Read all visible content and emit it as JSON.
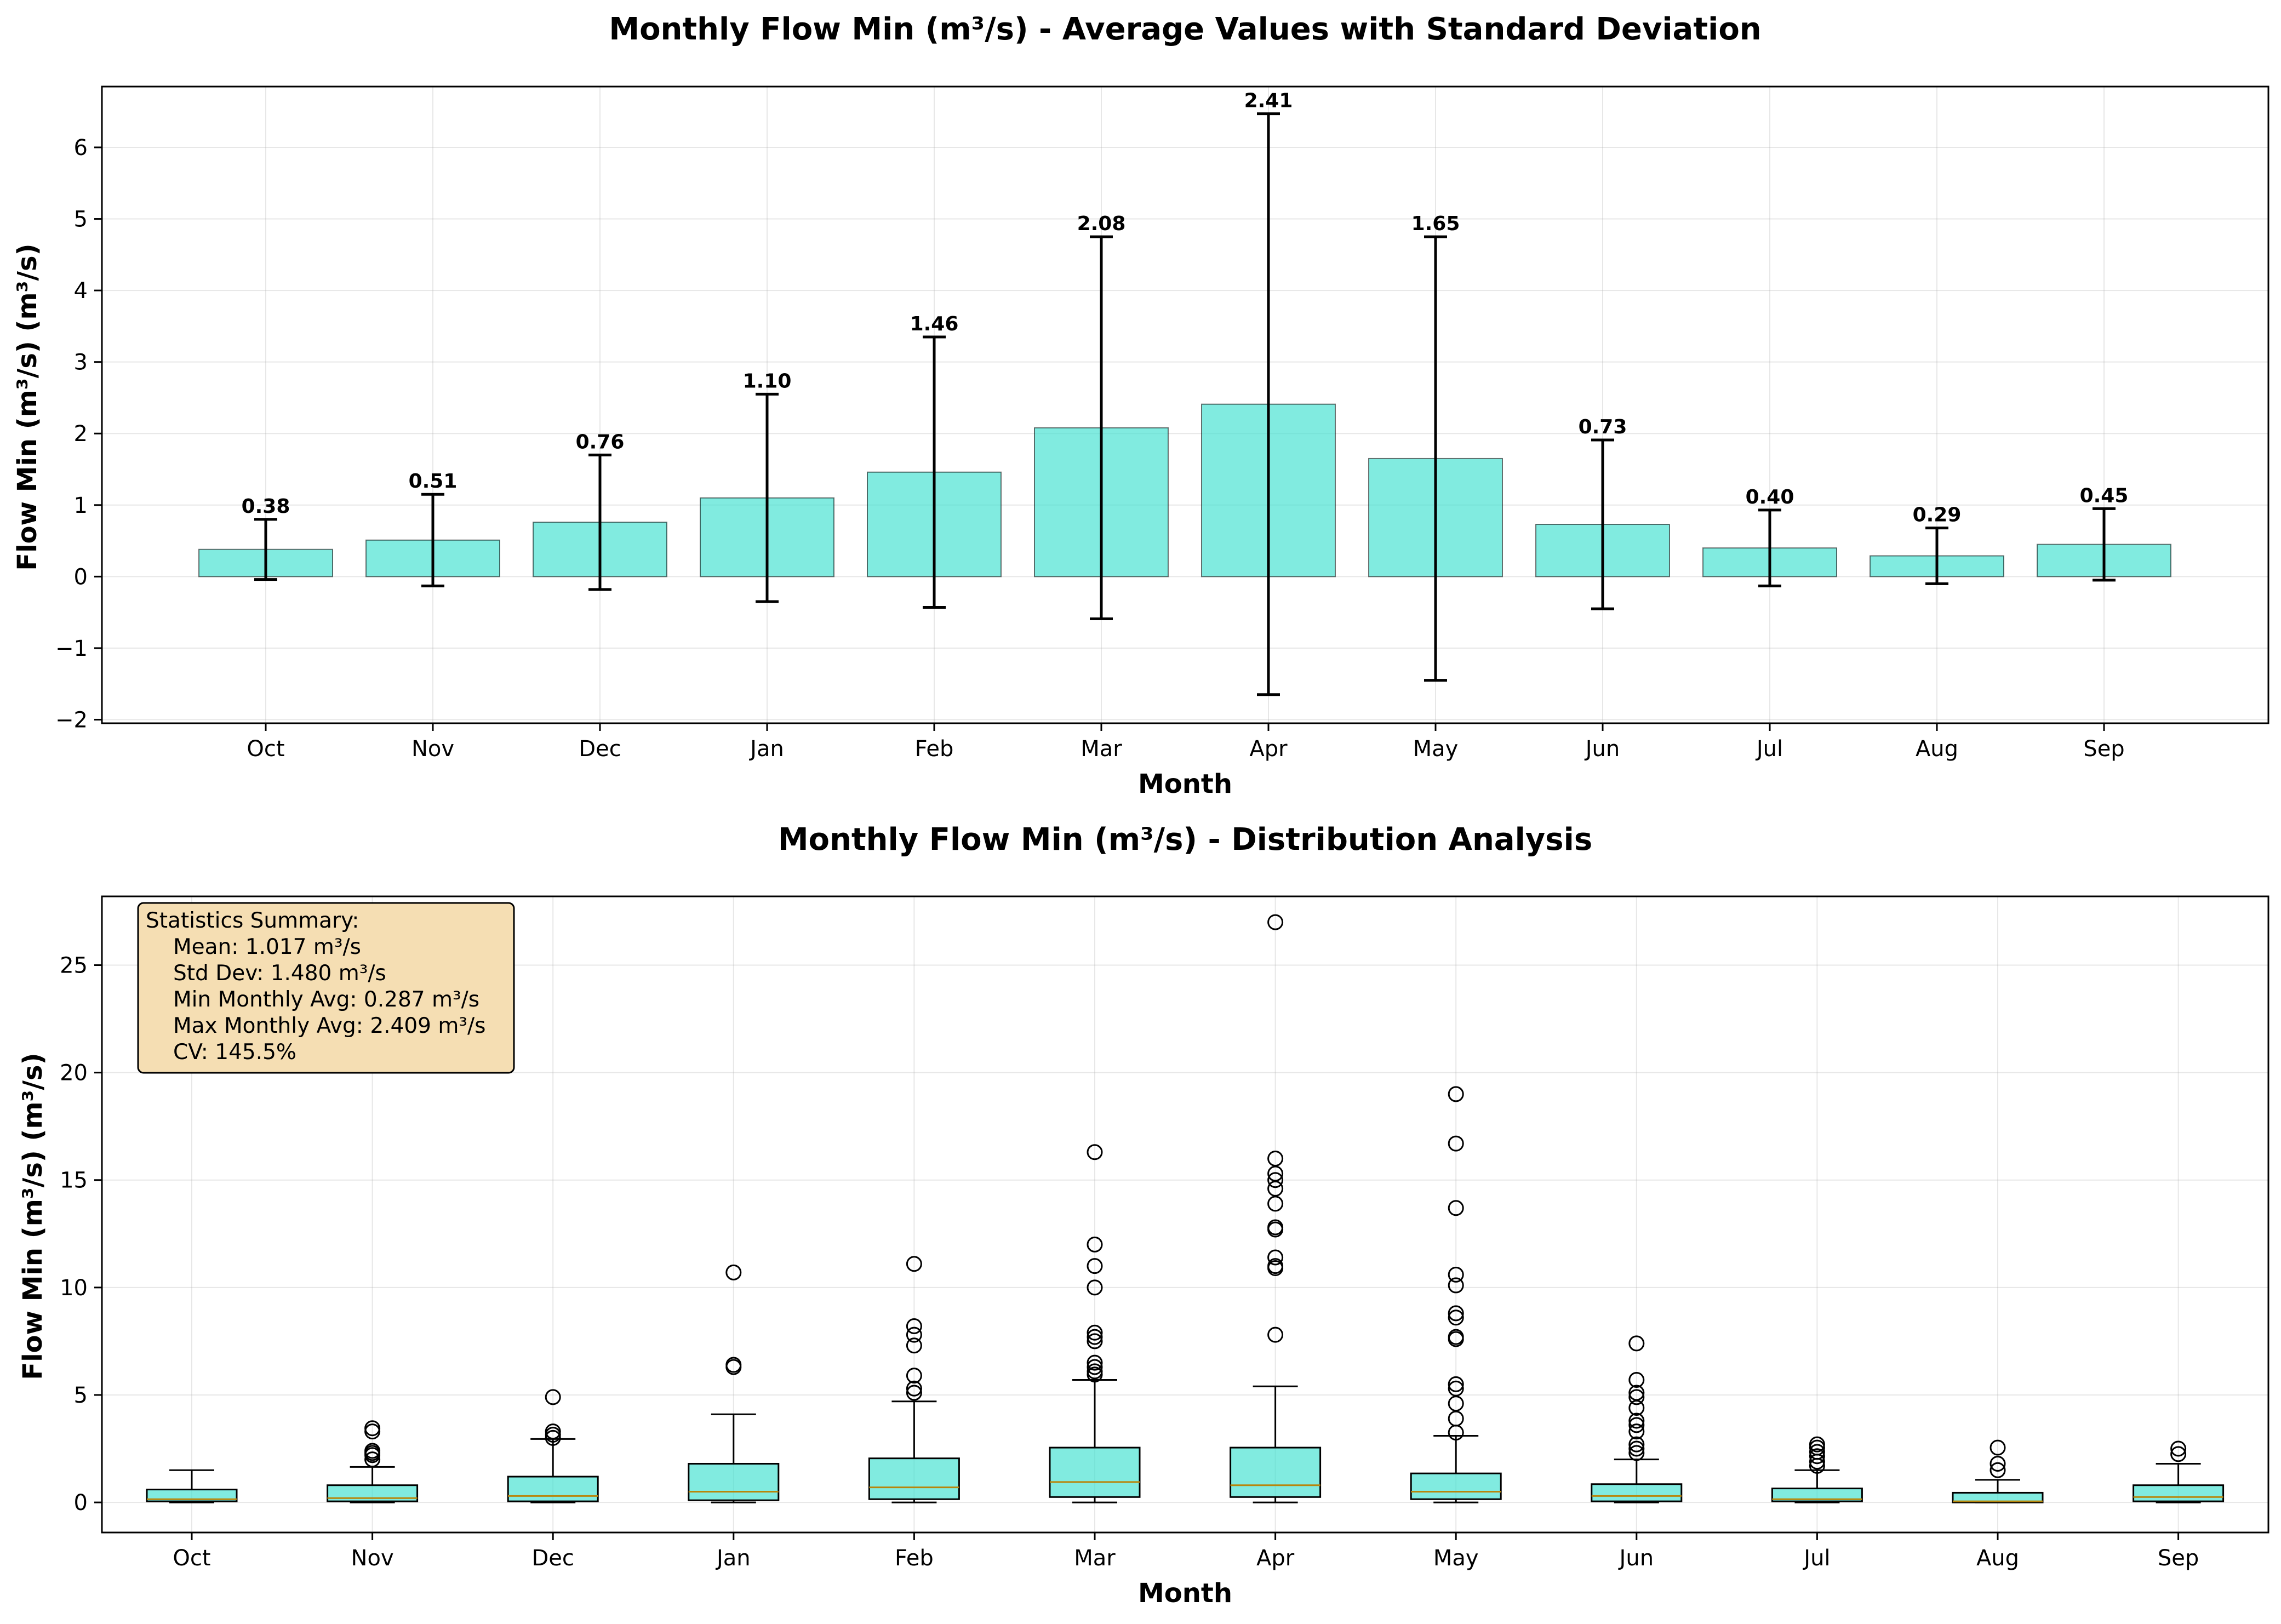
{
  "colors": {
    "bar_fill": "#40E0D0",
    "box_fill": "#40E0D0",
    "median": "#b8860b",
    "stats_box": "#f5deb3"
  },
  "chart_data": [
    {
      "type": "bar",
      "title": "Monthly Flow Min (m³/s) - Average Values with Standard Deviation",
      "xlabel": "Month",
      "ylabel": "Flow Min (m³/s) (m³/s)",
      "categories": [
        "Oct",
        "Nov",
        "Dec",
        "Jan",
        "Feb",
        "Mar",
        "Apr",
        "May",
        "Jun",
        "Jul",
        "Aug",
        "Sep"
      ],
      "values": [
        0.38,
        0.51,
        0.76,
        1.1,
        1.46,
        2.08,
        2.41,
        1.65,
        0.73,
        0.4,
        0.29,
        0.45
      ],
      "value_labels": [
        "0.38",
        "0.51",
        "0.76",
        "1.10",
        "1.46",
        "2.08",
        "2.41",
        "1.65",
        "0.73",
        "0.40",
        "0.29",
        "0.45"
      ],
      "std": [
        0.42,
        0.64,
        0.94,
        1.45,
        1.89,
        2.67,
        4.06,
        3.1,
        1.18,
        0.53,
        0.39,
        0.5
      ],
      "ylim": [
        -2.05,
        6.85
      ],
      "yticks": [
        -2,
        -1,
        0,
        1,
        2,
        3,
        4,
        5,
        6
      ],
      "ytick_labels": [
        "−2",
        "−1",
        "0",
        "1",
        "2",
        "3",
        "4",
        "5",
        "6"
      ],
      "grid": true
    },
    {
      "type": "box",
      "title": "Monthly Flow Min (m³/s) - Distribution Analysis",
      "xlabel": "Month",
      "ylabel": "Flow Min (m³/s) (m³/s)",
      "categories": [
        "Oct",
        "Nov",
        "Dec",
        "Jan",
        "Feb",
        "Mar",
        "Apr",
        "May",
        "Jun",
        "Jul",
        "Aug",
        "Sep"
      ],
      "ylim": [
        -1.4,
        28.2
      ],
      "yticks": [
        0,
        5,
        10,
        15,
        20,
        25
      ],
      "ytick_labels": [
        "0",
        "5",
        "10",
        "15",
        "20",
        "25"
      ],
      "grid": true,
      "boxes": [
        {
          "min": 0.0,
          "q1": 0.05,
          "median": 0.15,
          "q3": 0.6,
          "max": 1.5,
          "outliers": []
        },
        {
          "min": 0.0,
          "q1": 0.05,
          "median": 0.2,
          "q3": 0.8,
          "max": 1.65,
          "outliers": [
            2.0,
            2.2,
            2.3,
            2.4,
            3.3,
            3.45
          ]
        },
        {
          "min": 0.0,
          "q1": 0.05,
          "median": 0.3,
          "q3": 1.2,
          "max": 2.95,
          "outliers": [
            3.0,
            3.15,
            3.3,
            4.9
          ]
        },
        {
          "min": 0.0,
          "q1": 0.1,
          "median": 0.5,
          "q3": 1.8,
          "max": 4.1,
          "outliers": [
            6.3,
            6.4,
            10.7
          ]
        },
        {
          "min": 0.0,
          "q1": 0.15,
          "median": 0.7,
          "q3": 2.05,
          "max": 4.7,
          "outliers": [
            5.1,
            5.3,
            5.9,
            7.3,
            7.8,
            8.2,
            11.1
          ]
        },
        {
          "min": 0.0,
          "q1": 0.25,
          "median": 0.95,
          "q3": 2.55,
          "max": 5.7,
          "outliers": [
            5.95,
            6.1,
            6.3,
            6.5,
            7.5,
            7.7,
            7.9,
            10.0,
            11.0,
            12.0,
            16.3
          ]
        },
        {
          "min": 0.0,
          "q1": 0.25,
          "median": 0.8,
          "q3": 2.55,
          "max": 5.4,
          "outliers": [
            7.8,
            10.9,
            11.0,
            11.4,
            12.7,
            12.8,
            13.9,
            14.6,
            15.0,
            15.3,
            16.0,
            27.0
          ]
        },
        {
          "min": 0.0,
          "q1": 0.15,
          "median": 0.5,
          "q3": 1.35,
          "max": 3.1,
          "outliers": [
            3.25,
            3.9,
            4.6,
            5.3,
            5.5,
            7.6,
            7.7,
            8.6,
            8.8,
            10.1,
            10.6,
            13.7,
            16.7,
            19.0
          ]
        },
        {
          "min": 0.0,
          "q1": 0.05,
          "median": 0.3,
          "q3": 0.85,
          "max": 2.0,
          "outliers": [
            2.3,
            2.5,
            2.7,
            3.3,
            3.6,
            3.8,
            4.4,
            4.9,
            5.1,
            5.7,
            7.4
          ]
        },
        {
          "min": 0.0,
          "q1": 0.05,
          "median": 0.15,
          "q3": 0.65,
          "max": 1.5,
          "outliers": [
            1.7,
            1.9,
            2.15,
            2.35,
            2.55,
            2.7
          ]
        },
        {
          "min": 0.0,
          "q1": 0.0,
          "median": 0.05,
          "q3": 0.45,
          "max": 1.05,
          "outliers": [
            1.5,
            1.8,
            2.55
          ]
        },
        {
          "min": 0.0,
          "q1": 0.05,
          "median": 0.25,
          "q3": 0.8,
          "max": 1.8,
          "outliers": [
            2.25,
            2.5
          ]
        }
      ],
      "stats_summary": {
        "heading": "Statistics Summary:",
        "lines": [
          "Mean: 1.017 m³/s",
          "Std Dev: 1.480 m³/s",
          "Min Monthly Avg: 0.287 m³/s",
          "Max Monthly Avg: 2.409 m³/s",
          "CV: 145.5%"
        ]
      }
    }
  ]
}
